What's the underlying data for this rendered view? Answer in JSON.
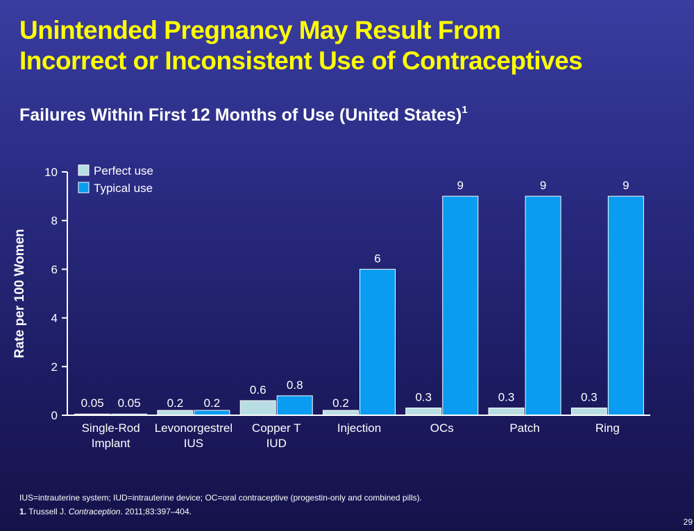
{
  "slide": {
    "title_line1": "Unintended Pregnancy May Result From",
    "title_line2": "Incorrect or Inconsistent Use of Contraceptives",
    "subtitle": "Failures Within First 12 Months of Use (United States)",
    "subtitle_ref": "1",
    "footnote_abbrev": "IUS=intrauterine system; IUD=intrauterine device; OC=oral contraceptive (progestin-only and combined pills).",
    "ref_number": "1.",
    "ref_author": "Trussell J.",
    "ref_journal": "Contraception",
    "ref_details": ". 2011;83:397–404.",
    "page_number": "29"
  },
  "colors": {
    "title": "#ffff00",
    "perfect_use": "#b8dee3",
    "typical_use": "#0a9cf0",
    "axis": "#ffffff"
  },
  "chart_data": {
    "type": "bar",
    "ylabel": "Rate per 100 Women",
    "ylim": [
      0,
      10
    ],
    "yticks": [
      0,
      2,
      4,
      6,
      8,
      10
    ],
    "legend_position": "top-left",
    "categories": [
      [
        "Single-Rod",
        "Implant"
      ],
      [
        "Levonorgestrel",
        "IUS"
      ],
      [
        "Copper T",
        "IUD"
      ],
      [
        "Injection"
      ],
      [
        "OCs"
      ],
      [
        "Patch"
      ],
      [
        "Ring"
      ]
    ],
    "series": [
      {
        "name": "Perfect use",
        "values": [
          0.05,
          0.2,
          0.6,
          0.2,
          0.3,
          0.3,
          0.3
        ],
        "labels": [
          "0.05",
          "0.2",
          "0.6",
          "0.2",
          "0.3",
          "0.3",
          "0.3"
        ]
      },
      {
        "name": "Typical use",
        "values": [
          0.05,
          0.2,
          0.8,
          6,
          9,
          9,
          9
        ],
        "labels": [
          "0.05",
          "0.2",
          "0.8",
          "6",
          "9",
          "9",
          "9"
        ]
      }
    ]
  }
}
